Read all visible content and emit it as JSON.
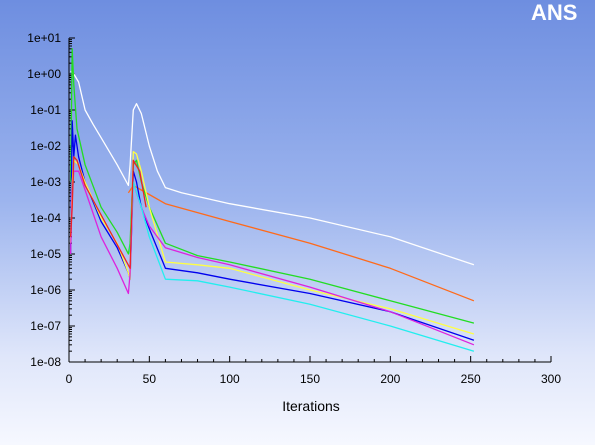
{
  "logo": {
    "text": "ANS",
    "color": "#ffffff",
    "accent": "#f0b400"
  },
  "chart_data": {
    "type": "line",
    "title": "",
    "xlabel": "Iterations",
    "ylabel": "",
    "xlim": [
      0,
      300
    ],
    "ylim": [
      1e-08,
      10
    ],
    "yscale": "log",
    "grid": false,
    "legend": "none",
    "x_ticks": [
      0,
      50,
      100,
      150,
      200,
      250,
      300
    ],
    "y_ticks": [
      {
        "value": 1e-08,
        "label": "1e-08"
      },
      {
        "value": 1e-07,
        "label": "1e-07"
      },
      {
        "value": 1e-06,
        "label": "1e-06"
      },
      {
        "value": 1e-05,
        "label": "1e-05"
      },
      {
        "value": 0.0001,
        "label": "1e-04"
      },
      {
        "value": 0.001,
        "label": "1e-03"
      },
      {
        "value": 0.01,
        "label": "1e-02"
      },
      {
        "value": 0.1,
        "label": "1e-01"
      },
      {
        "value": 1,
        "label": "1e+00"
      },
      {
        "value": 10,
        "label": "1e+01"
      }
    ],
    "series": [
      {
        "color": "#ffffff",
        "points": [
          [
            1,
            1.2
          ],
          [
            3,
            1.0
          ],
          [
            6,
            0.6
          ],
          [
            10,
            0.1
          ],
          [
            15,
            0.04
          ],
          [
            20,
            0.017
          ],
          [
            30,
            0.003
          ],
          [
            37,
            0.0008
          ],
          [
            38,
            0.003
          ],
          [
            40,
            0.1
          ],
          [
            42,
            0.15
          ],
          [
            45,
            0.08
          ],
          [
            50,
            0.01
          ],
          [
            55,
            0.002
          ],
          [
            60,
            0.0007
          ],
          [
            70,
            0.0005
          ],
          [
            100,
            0.00025
          ],
          [
            150,
            0.0001
          ],
          [
            200,
            3e-05
          ],
          [
            252,
            5e-06
          ]
        ]
      },
      {
        "color": "#ff6a1a",
        "points": [
          [
            37,
            0.0005
          ],
          [
            40,
            0.0008
          ],
          [
            45,
            0.0006
          ],
          [
            60,
            0.00025
          ],
          [
            100,
            8e-05
          ],
          [
            150,
            2e-05
          ],
          [
            200,
            4e-06
          ],
          [
            252,
            5e-07
          ]
        ]
      },
      {
        "color": "#22dd22",
        "points": [
          [
            1,
            0.001
          ],
          [
            2,
            5
          ],
          [
            3,
            0.5
          ],
          [
            5,
            0.03
          ],
          [
            10,
            0.003
          ],
          [
            20,
            0.0002
          ],
          [
            30,
            4e-05
          ],
          [
            37,
            1e-05
          ],
          [
            38,
            2e-05
          ],
          [
            40,
            0.003
          ],
          [
            42,
            0.004
          ],
          [
            45,
            0.001
          ],
          [
            50,
            0.0002
          ],
          [
            60,
            2e-05
          ],
          [
            80,
            9e-06
          ],
          [
            100,
            6e-06
          ],
          [
            150,
            2e-06
          ],
          [
            200,
            5e-07
          ],
          [
            252,
            1.2e-07
          ]
        ]
      },
      {
        "color": "#0000ee",
        "points": [
          [
            1,
            1e-05
          ],
          [
            2,
            0.05
          ],
          [
            3,
            0.005
          ],
          [
            4,
            0.02
          ],
          [
            6,
            0.005
          ],
          [
            10,
            0.001
          ],
          [
            20,
            8e-05
          ],
          [
            30,
            1.5e-05
          ],
          [
            37,
            3e-06
          ],
          [
            38,
            2e-06
          ],
          [
            40,
            0.002
          ],
          [
            42,
            0.001
          ],
          [
            45,
            0.0002
          ],
          [
            50,
            5e-05
          ],
          [
            60,
            4e-06
          ],
          [
            80,
            3e-06
          ],
          [
            100,
            2e-06
          ],
          [
            150,
            8e-07
          ],
          [
            200,
            2.5e-07
          ],
          [
            252,
            4e-08
          ]
        ]
      },
      {
        "color": "#ffff44",
        "points": [
          [
            1,
            2e-05
          ],
          [
            2,
            0.001
          ],
          [
            3,
            0.004
          ],
          [
            6,
            0.003
          ],
          [
            10,
            0.001
          ],
          [
            20,
            0.0001
          ],
          [
            30,
            2e-05
          ],
          [
            37,
            3e-06
          ],
          [
            38,
            2e-06
          ],
          [
            40,
            0.007
          ],
          [
            42,
            0.006
          ],
          [
            45,
            0.002
          ],
          [
            50,
            0.0002
          ],
          [
            60,
            6e-06
          ],
          [
            80,
            5e-06
          ],
          [
            100,
            4e-06
          ],
          [
            150,
            1e-06
          ],
          [
            200,
            3e-07
          ],
          [
            252,
            6e-08
          ]
        ]
      },
      {
        "color": "#dd22dd",
        "points": [
          [
            1,
            1e-05
          ],
          [
            2,
            0.0005
          ],
          [
            3,
            0.002
          ],
          [
            6,
            0.002
          ],
          [
            10,
            0.0006
          ],
          [
            20,
            3e-05
          ],
          [
            30,
            4e-06
          ],
          [
            37,
            8e-07
          ],
          [
            38,
            3e-06
          ],
          [
            40,
            0.001
          ],
          [
            42,
            0.0005
          ],
          [
            45,
            0.0002
          ],
          [
            50,
            6e-05
          ],
          [
            60,
            1.5e-05
          ],
          [
            80,
            8e-06
          ],
          [
            100,
            5e-06
          ],
          [
            150,
            1.2e-06
          ],
          [
            200,
            2.5e-07
          ],
          [
            252,
            3e-08
          ]
        ]
      },
      {
        "color": "#22eeee",
        "points": [
          [
            38,
            1e-05
          ],
          [
            40,
            0.001
          ],
          [
            45,
            0.0002
          ],
          [
            50,
            3e-05
          ],
          [
            60,
            2e-06
          ],
          [
            80,
            1.8e-06
          ],
          [
            100,
            1.2e-06
          ],
          [
            150,
            4e-07
          ],
          [
            200,
            1e-07
          ],
          [
            252,
            2e-08
          ]
        ]
      },
      {
        "color": "#ee2222",
        "points": [
          [
            1,
            3e-05
          ],
          [
            2,
            0.0002
          ],
          [
            3,
            0.005
          ],
          [
            5,
            0.004
          ],
          [
            10,
            0.0008
          ],
          [
            38,
            4e-06
          ],
          [
            40,
            0.004
          ],
          [
            44,
            0.002
          ],
          [
            48,
            0.0002
          ]
        ]
      }
    ]
  }
}
